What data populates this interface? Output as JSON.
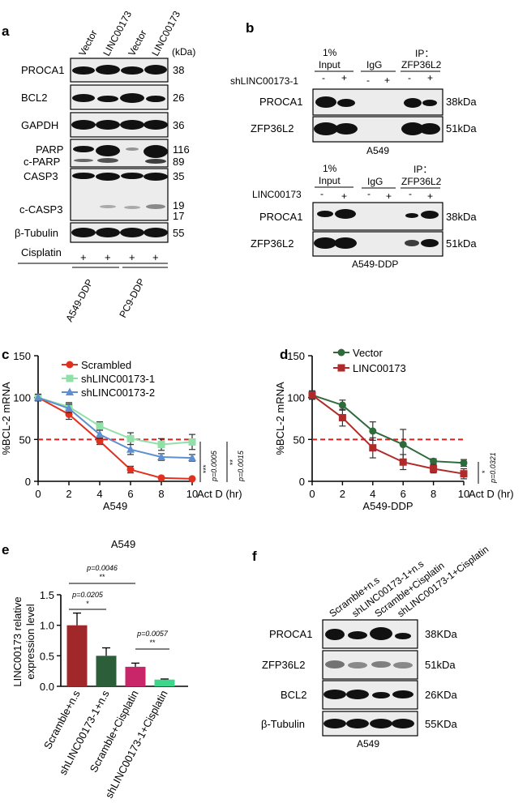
{
  "panels": {
    "a": "a",
    "b": "b",
    "c": "c",
    "d": "d",
    "e": "e",
    "f": "f"
  },
  "panel_a": {
    "lanes": [
      "Vector",
      "LINC00173",
      "Vector",
      "LINC00173"
    ],
    "unit": "(kDa)",
    "rows": [
      {
        "label": "PROCA1",
        "kda": "38"
      },
      {
        "label": "BCL2",
        "kda": "26"
      },
      {
        "label": "GAPDH",
        "kda": "36"
      },
      {
        "label": "PARP",
        "kda": "116"
      },
      {
        "label": "c-PARP",
        "kda": "89"
      },
      {
        "label": "CASP3",
        "kda": "35"
      },
      {
        "label": "c-CASP3",
        "kda": "19"
      },
      {
        "label": "",
        "kda": "17"
      },
      {
        "label": "β-Tubulin",
        "kda": "55"
      }
    ],
    "treatment": "Cisplatin",
    "signs": [
      "+",
      "+",
      "+",
      "+"
    ],
    "groups": [
      "A549-DDP",
      "PC9-DDP"
    ]
  },
  "panel_b": {
    "top": {
      "cols": [
        "1%\nInput",
        "IgG",
        "IP：\nZFP36L2"
      ],
      "col1a": "1%",
      "col1b": "Input",
      "col2": "IgG",
      "col3a": "IP：",
      "col3b": "ZFP36L2",
      "factor": "shLINC00173-1",
      "signs": [
        "-",
        "+",
        "-",
        "+",
        "-",
        "+"
      ],
      "rows": [
        {
          "label": "PROCA1",
          "kda": "38kDa"
        },
        {
          "label": "ZFP36L2",
          "kda": "51kDa"
        }
      ],
      "cell": "A549"
    },
    "bottom": {
      "col1a": "1%",
      "col1b": "Input",
      "col2": "IgG",
      "col3a": "IP：",
      "col3b": "ZFP36L2",
      "factor": "LINC00173",
      "signs": [
        "-",
        "+",
        "-",
        "+",
        "-",
        "+"
      ],
      "rows": [
        {
          "label": "PROCA1",
          "kda": "38kDa"
        },
        {
          "label": "ZFP36L2",
          "kda": "51kDa"
        }
      ],
      "cell": "A549-DDP"
    }
  },
  "panel_f": {
    "lanes": [
      "Scramble+n.s",
      "shLINC00173-1+n.s",
      "Scramble+Cisplatin",
      "shLINC00173-1+Cisplatin"
    ],
    "rows": [
      {
        "label": "PROCA1",
        "kda": "38KDa"
      },
      {
        "label": "ZFP36L2",
        "kda": "51kDa"
      },
      {
        "label": "BCL2",
        "kda": "26KDa"
      },
      {
        "label": "β-Tubulin",
        "kda": "55KDa"
      }
    ],
    "cell": "A549"
  },
  "chart_data": [
    {
      "type": "line",
      "panel": "c",
      "xlabel": "Act D (hr)",
      "ylabel": "%BCL-2 mRNA",
      "cell": "A549",
      "x": [
        0,
        2,
        4,
        6,
        8,
        10
      ],
      "xlim": [
        0,
        10
      ],
      "ylim": [
        0,
        150
      ],
      "xticks": [
        "0",
        "2",
        "4",
        "6",
        "8",
        "10"
      ],
      "yticks": [
        "0",
        "50",
        "100",
        "150"
      ],
      "reference_line": 50,
      "series": [
        {
          "name": "Scrambled",
          "color": "#e0301e",
          "marker": "circle",
          "values": [
            100,
            80,
            48,
            14,
            4,
            3
          ],
          "err": [
            4,
            6,
            4,
            4,
            1,
            1
          ]
        },
        {
          "name": "shLINC00173-1",
          "color": "#90e0a8",
          "marker": "square",
          "values": [
            100,
            89,
            66,
            51,
            44,
            47
          ],
          "err": [
            4,
            5,
            5,
            7,
            7,
            9
          ]
        },
        {
          "name": "shLINC00173-2",
          "color": "#5e8fd0",
          "marker": "triangle",
          "values": [
            100,
            87,
            56,
            38,
            29,
            28
          ],
          "err": [
            4,
            5,
            5,
            6,
            4,
            4
          ]
        }
      ],
      "sig": [
        {
          "stars": "***",
          "p": "p=0.0005"
        },
        {
          "stars": "**",
          "p": "p=0.0015"
        }
      ]
    },
    {
      "type": "line",
      "panel": "d",
      "xlabel": "Act D (hr)",
      "ylabel": "%BCL-2 mRNA",
      "cell": "A549-DDP",
      "x": [
        0,
        2,
        4,
        6,
        8,
        10
      ],
      "xlim": [
        0,
        10
      ],
      "ylim": [
        0,
        150
      ],
      "xticks": [
        "0",
        "2",
        "4",
        "6",
        "8",
        "10"
      ],
      "yticks": [
        "0",
        "50",
        "100",
        "150"
      ],
      "reference_line": 50,
      "series": [
        {
          "name": "Vector",
          "color": "#2e6b3a",
          "marker": "circle",
          "values": [
            103,
            91,
            60,
            44,
            24,
            22
          ],
          "err": [
            5,
            6,
            11,
            18,
            3,
            4
          ]
        },
        {
          "name": "LINC00173",
          "color": "#b02a2a",
          "marker": "square",
          "values": [
            103,
            76,
            40,
            23,
            15,
            9
          ],
          "err": [
            5,
            10,
            12,
            9,
            5,
            6
          ]
        }
      ],
      "sig": [
        {
          "stars": "*",
          "p": "p=0.0321"
        }
      ]
    },
    {
      "type": "bar",
      "panel": "e",
      "title": "A549",
      "ylabel": "LINC00173 relative expression level",
      "ylabel_line1": "LINC00173 relative",
      "ylabel_line2": "expression level",
      "categories": [
        "Scramble+n.s",
        "shLINC00173-1+n.s",
        "Scramble+Cisplatin",
        "shLINC00173-1+Cisplatin"
      ],
      "values": [
        1.0,
        0.5,
        0.32,
        0.11
      ],
      "err": [
        0.2,
        0.13,
        0.06,
        0.01
      ],
      "colors": [
        "#a0282a",
        "#2d5e3a",
        "#c9266a",
        "#3ed68a"
      ],
      "ylim": [
        0,
        1.5
      ],
      "yticks": [
        "0.0",
        "0.5",
        "1.0",
        "1.5"
      ],
      "sig": [
        {
          "p": "p=0.0046",
          "stars": "**"
        },
        {
          "p": "p=0.0205",
          "stars": "*"
        },
        {
          "p": "p=0.0057",
          "stars": "**"
        }
      ]
    }
  ]
}
